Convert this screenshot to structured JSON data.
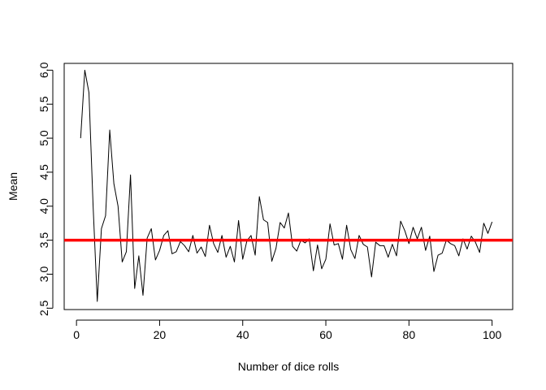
{
  "chart_data": {
    "type": "line",
    "title": "",
    "xlabel": "Number of dice rolls",
    "ylabel": "Mean",
    "xlim": [
      -2.96,
      104.96
    ],
    "ylim": [
      2.48,
      6.1
    ],
    "x_ticks": [
      0,
      20,
      40,
      60,
      80,
      100
    ],
    "x_tick_labels": [
      "0",
      "20",
      "40",
      "60",
      "80",
      "100"
    ],
    "y_ticks": [
      2.5,
      3.0,
      3.5,
      4.0,
      4.5,
      5.0,
      5.5,
      6.0
    ],
    "y_tick_labels": [
      "2.5",
      "3.0",
      "3.5",
      "4.0",
      "4.5",
      "5.0",
      "5.5",
      "6.0"
    ],
    "grid": false,
    "box": true,
    "series": [
      {
        "color": "#000000",
        "x": [
          1,
          2,
          3,
          4,
          5,
          6,
          7,
          8,
          9,
          10,
          11,
          12,
          13,
          14,
          15,
          16,
          17,
          18,
          19,
          20,
          21,
          22,
          23,
          24,
          25,
          26,
          27,
          28,
          29,
          30,
          31,
          32,
          33,
          34,
          35,
          36,
          37,
          38,
          39,
          40,
          41,
          42,
          43,
          44,
          45,
          46,
          47,
          48,
          49,
          50,
          51,
          52,
          53,
          54,
          55,
          56,
          57,
          58,
          59,
          60,
          61,
          62,
          63,
          64,
          65,
          66,
          67,
          68,
          69,
          70,
          71,
          72,
          73,
          74,
          75,
          76,
          77,
          78,
          79,
          80,
          81,
          82,
          83,
          84,
          85,
          86,
          87,
          88,
          89,
          90,
          91,
          92,
          93,
          94,
          95,
          96,
          97,
          98,
          99,
          100
        ],
        "y": [
          5.0,
          6.0,
          5.67,
          4.0,
          2.6,
          3.67,
          3.86,
          5.12,
          4.33,
          4.0,
          3.18,
          3.33,
          4.46,
          2.79,
          3.27,
          2.69,
          3.53,
          3.67,
          3.21,
          3.35,
          3.57,
          3.64,
          3.3,
          3.33,
          3.48,
          3.42,
          3.33,
          3.57,
          3.31,
          3.4,
          3.26,
          3.72,
          3.45,
          3.32,
          3.57,
          3.25,
          3.41,
          3.18,
          3.79,
          3.22,
          3.49,
          3.57,
          3.28,
          4.14,
          3.8,
          3.76,
          3.19,
          3.38,
          3.76,
          3.68,
          3.9,
          3.41,
          3.34,
          3.5,
          3.46,
          3.52,
          3.05,
          3.43,
          3.08,
          3.22,
          3.74,
          3.43,
          3.45,
          3.22,
          3.72,
          3.36,
          3.23,
          3.57,
          3.44,
          3.4,
          2.96,
          3.47,
          3.42,
          3.42,
          3.25,
          3.44,
          3.27,
          3.78,
          3.64,
          3.45,
          3.69,
          3.52,
          3.69,
          3.35,
          3.56,
          3.04,
          3.28,
          3.31,
          3.5,
          3.45,
          3.42,
          3.27,
          3.52,
          3.37,
          3.56,
          3.47,
          3.32,
          3.75,
          3.6,
          3.77
        ]
      }
    ],
    "reference_lines": [
      {
        "orientation": "horizontal",
        "y": 3.5,
        "color": "#ff0000"
      }
    ]
  }
}
